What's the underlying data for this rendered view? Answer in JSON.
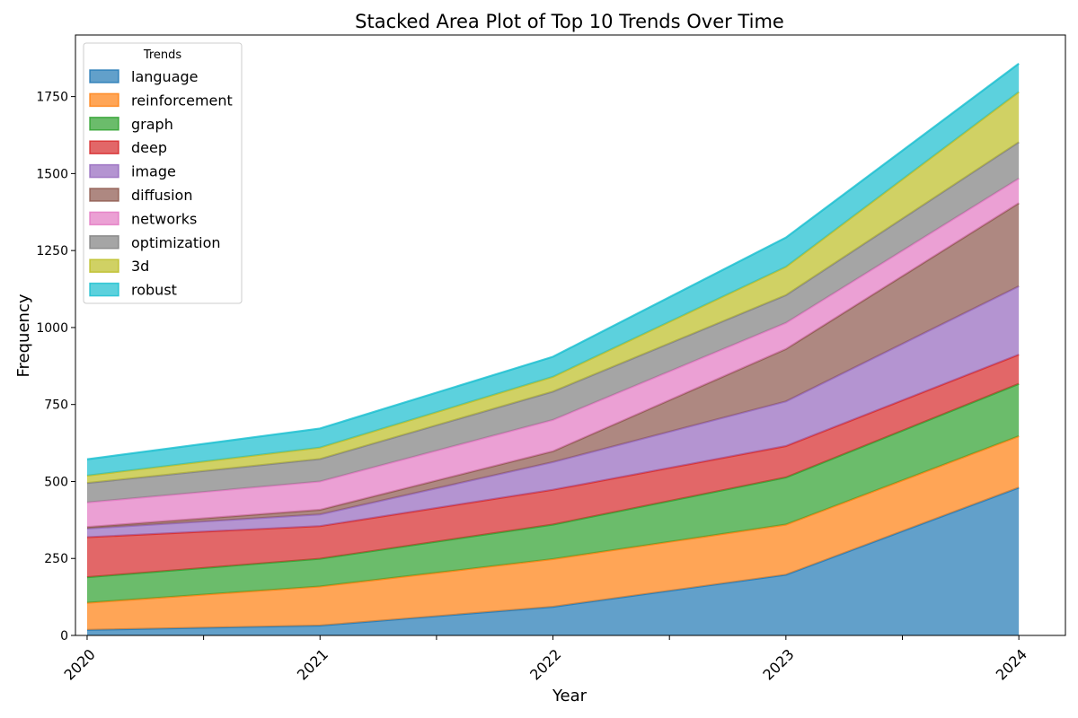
{
  "chart_data": {
    "type": "area",
    "stacked": true,
    "title": "Stacked Area Plot of Top 10 Trends Over Time",
    "xlabel": "Year",
    "ylabel": "Frequency",
    "x": [
      "2020",
      "2021",
      "2022",
      "2023",
      "2024"
    ],
    "xlim": [
      2019.95,
      2024.2
    ],
    "ylim": [
      0,
      1950
    ],
    "yticks": [
      0,
      250,
      500,
      750,
      1000,
      1250,
      1500,
      1750
    ],
    "legend_title": "Trends",
    "legend_position": "top-left",
    "grid": false,
    "series": [
      {
        "name": "language",
        "color": "#1f77b4",
        "values": [
          18,
          32,
          93,
          197,
          480
        ]
      },
      {
        "name": "reinforcement",
        "color": "#ff7f0e",
        "values": [
          88,
          127,
          155,
          163,
          167
        ]
      },
      {
        "name": "graph",
        "color": "#2ca02c",
        "values": [
          83,
          90,
          112,
          153,
          170
        ]
      },
      {
        "name": "deep",
        "color": "#d62728",
        "values": [
          130,
          106,
          113,
          102,
          95
        ]
      },
      {
        "name": "image",
        "color": "#9467bd",
        "values": [
          28,
          38,
          90,
          145,
          222
        ]
      },
      {
        "name": "diffusion",
        "color": "#8c564b",
        "values": [
          5,
          15,
          35,
          170,
          270
        ]
      },
      {
        "name": "networks",
        "color": "#e377c2",
        "values": [
          80,
          92,
          102,
          85,
          80
        ]
      },
      {
        "name": "optimization",
        "color": "#7f7f7f",
        "values": [
          63,
          73,
          92,
          90,
          118
        ]
      },
      {
        "name": "3d",
        "color": "#bcbd22",
        "values": [
          24,
          37,
          48,
          92,
          163
        ]
      },
      {
        "name": "robust",
        "color": "#17becf",
        "values": [
          53,
          62,
          65,
          95,
          92
        ]
      }
    ]
  }
}
